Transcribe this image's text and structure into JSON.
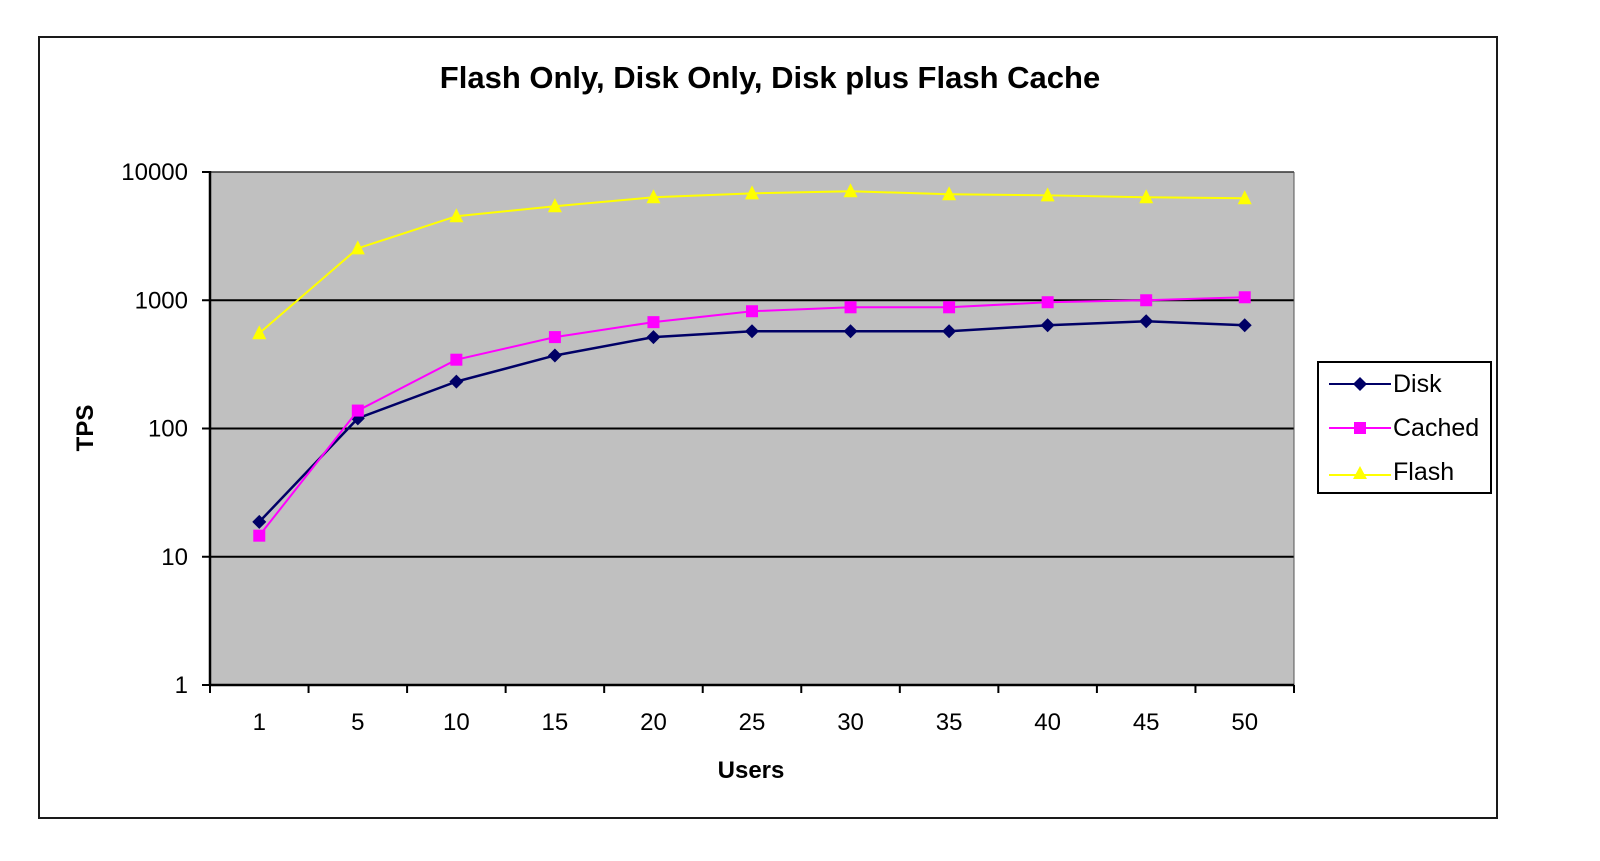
{
  "chart_data": {
    "type": "line",
    "title": "Flash Only, Disk Only, Disk plus Flash Cache",
    "xlabel": "Users",
    "ylabel": "TPS",
    "yscale": "log",
    "ylim": [
      1,
      10000
    ],
    "yticks": [
      "1",
      "10",
      "100",
      "1000",
      "10000"
    ],
    "categories": [
      "1",
      "5",
      "10",
      "15",
      "20",
      "25",
      "30",
      "35",
      "40",
      "45",
      "50"
    ],
    "grid": "horizontal major gridlines",
    "plot_background": "#c0c0c0",
    "legend_position": "right",
    "series": [
      {
        "name": "Disk",
        "color": "#000066",
        "marker": "diamond",
        "values": [
          18.7,
          120,
          232,
          371,
          516,
          573,
          573,
          573,
          638,
          686,
          638
        ]
      },
      {
        "name": "Cached",
        "color": "#ff00ff",
        "marker": "square",
        "values": [
          14.6,
          138,
          344,
          516,
          675,
          821,
          881,
          881,
          965,
          1000,
          1055
        ]
      },
      {
        "name": "Flash",
        "color": "#ffff00",
        "marker": "triangle",
        "values": [
          553,
          2540,
          4520,
          5410,
          6350,
          6820,
          7080,
          6700,
          6580,
          6350,
          6240
        ]
      }
    ]
  },
  "legend": {
    "items": [
      {
        "label": "Disk"
      },
      {
        "label": "Cached"
      },
      {
        "label": "Flash"
      }
    ]
  }
}
